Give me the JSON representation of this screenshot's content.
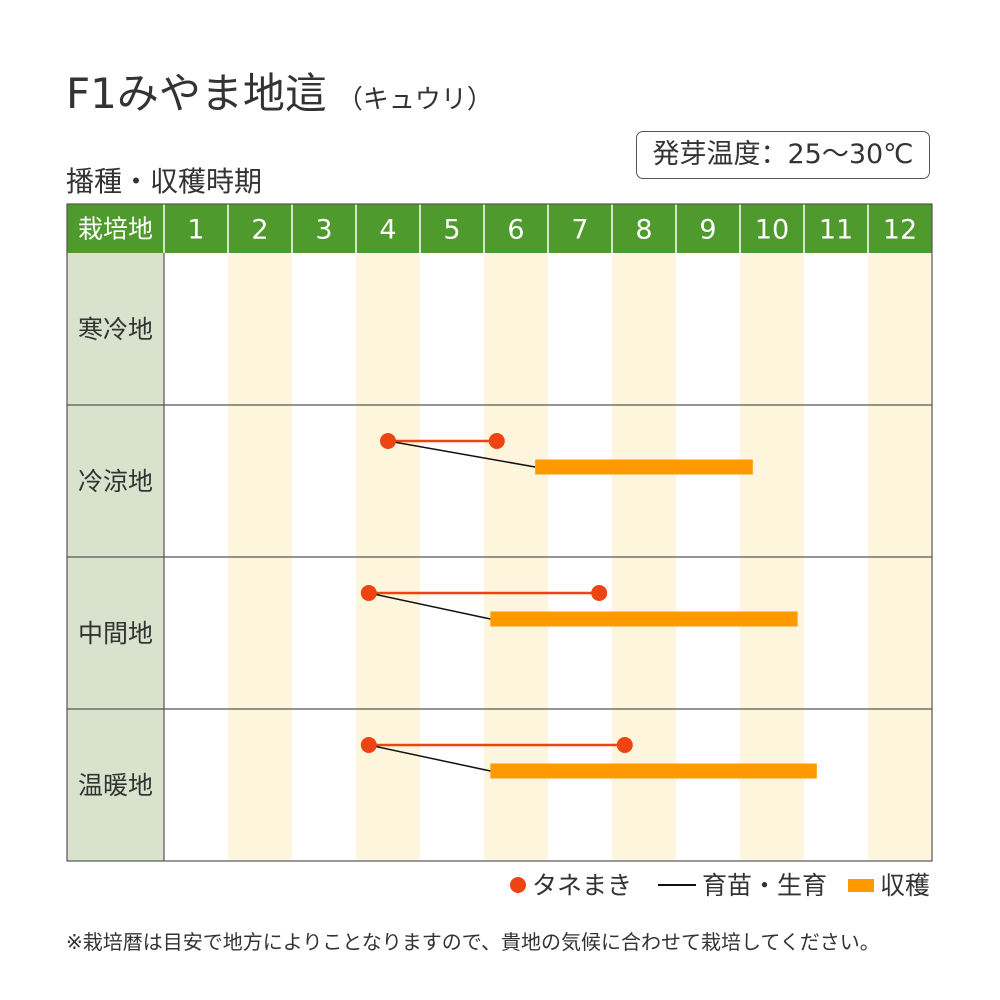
{
  "title": "F1みやま地這",
  "subtitle": "（キュウリ）",
  "section_title": "播種・収穫時期",
  "temperature_label": "発芽温度：25〜30℃",
  "legend": {
    "sowing": "タネまき",
    "seedling": "育苗・生育",
    "harvest": "収穫"
  },
  "note": "※栽培暦は目安で地方によりことなりますので、貴地の気候に合わせて栽培してください。",
  "colors": {
    "header_green": "#4e9a2c",
    "region_bg": "#d8e2cd",
    "alt_column": "#fdf6dc",
    "sowing": "#ee4411",
    "harvest": "#ff9900",
    "seedling": "#111111",
    "grid": "#555555"
  },
  "chart_data": {
    "type": "table",
    "header_label": "栽培地",
    "months": [
      "1",
      "2",
      "3",
      "4",
      "5",
      "6",
      "7",
      "8",
      "9",
      "10",
      "11",
      "12"
    ],
    "regions": [
      {
        "name": "寒冷地",
        "sowing": null,
        "harvest": null
      },
      {
        "name": "冷涼地",
        "sowing": [
          4.5,
          6.2
        ],
        "harvest": [
          6.8,
          10.2
        ]
      },
      {
        "name": "中間地",
        "sowing": [
          4.2,
          7.8
        ],
        "harvest": [
          6.1,
          10.9
        ]
      },
      {
        "name": "温暖地",
        "sowing": [
          4.2,
          8.2
        ],
        "harvest": [
          6.1,
          11.2
        ]
      }
    ]
  }
}
